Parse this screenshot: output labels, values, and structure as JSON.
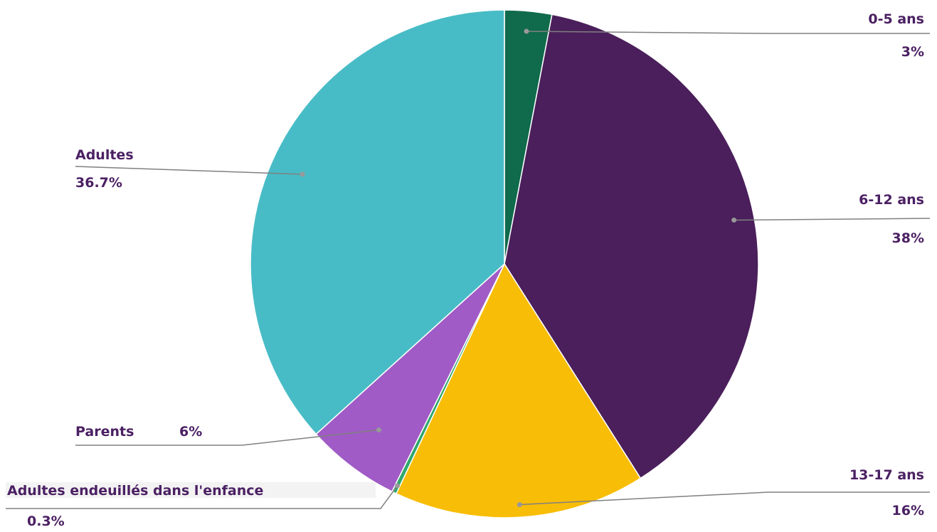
{
  "chart_data": {
    "type": "pie",
    "slices": [
      {
        "label": "0-5 ans",
        "value": 3,
        "value_label": "3%",
        "color": "#106a4c"
      },
      {
        "label": "6-12 ans",
        "value": 38,
        "value_label": "38%",
        "color": "#4a1f5b"
      },
      {
        "label": "13-17 ans",
        "value": 16,
        "value_label": "16%",
        "color": "#f8bd06"
      },
      {
        "label": "Adultes endeuillés dans l'enfance",
        "value": 0.3,
        "value_label": "0.3%",
        "color": "#2ea86b"
      },
      {
        "label": "Parents",
        "value": 6,
        "value_label": "6%",
        "color": "#a05bc6"
      },
      {
        "label": "Adultes",
        "value": 36.7,
        "value_label": "36.7%",
        "color": "#48bcc6"
      }
    ],
    "start_angle_deg": 0,
    "direction": "clockwise",
    "legend": "none",
    "label_color": "#4b2063",
    "leader_line_color": "#808080"
  }
}
